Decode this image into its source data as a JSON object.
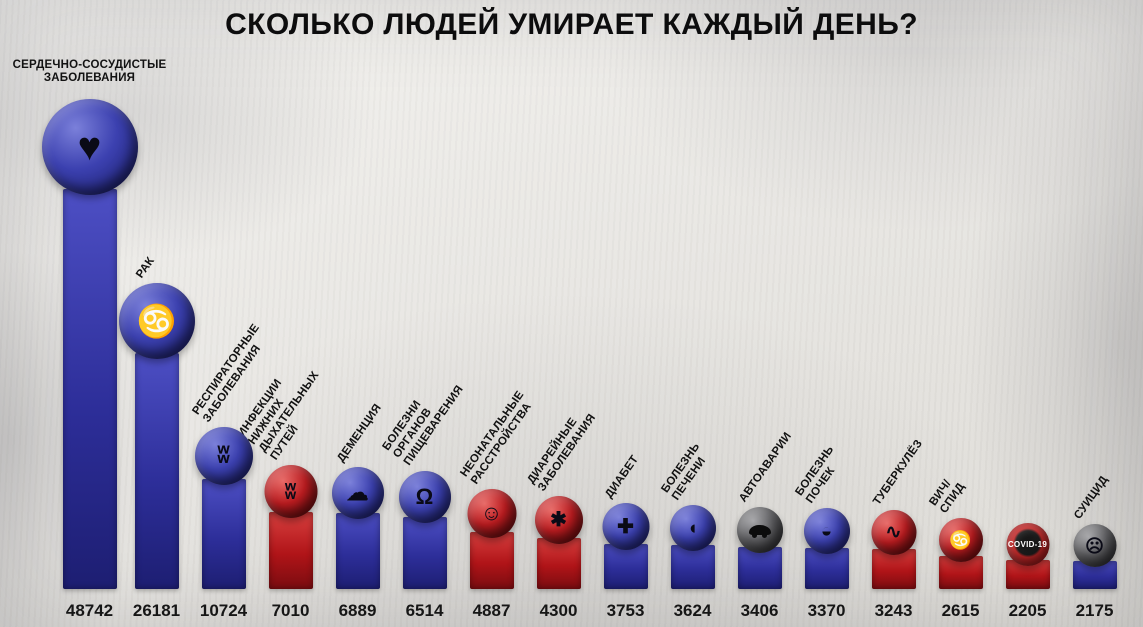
{
  "title": "СКОЛЬКО ЛЮДЕЙ УМИРАЕТ КАЖДЫЙ ДЕНЬ?",
  "colors": {
    "bar_blue": "#2d2e99",
    "bar_red": "#b01418",
    "circle_gray": "#57575a",
    "covid_ring_red": "#c42828",
    "text": "#121212",
    "background": "#eae9e6"
  },
  "chart_data": {
    "type": "bar",
    "title": "СКОЛЬКО ЛЮДЕЙ УМИРАЕТ КАЖДЫЙ ДЕНЬ?",
    "xlabel": "",
    "ylabel": "",
    "ylim": [
      0,
      50000
    ],
    "grid": false,
    "legend": false,
    "categories": [
      "Сердечно-сосудистые заболевания",
      "Рак",
      "Респираторные заболевания",
      "Инфекции нижних дыхательных путей",
      "Деменция",
      "Болезни органов пищеварения",
      "Неонатальные расстройства",
      "Диарейные заболевания",
      "Диабет",
      "Болезнь печени",
      "Автоаварии",
      "Болезнь почек",
      "Туберкулёз",
      "ВИЧ/СПИД",
      "COVID-19",
      "Суицид"
    ],
    "values": [
      48742,
      26181,
      10724,
      7010,
      6889,
      6514,
      4887,
      4300,
      3753,
      3624,
      3406,
      3370,
      3243,
      2615,
      2205,
      2175
    ],
    "bars": [
      {
        "label": "СЕРДЕЧНО-СОСУДИСТЫЕ\nЗАБОЛЕВАНИЯ",
        "value": 48742,
        "bar": "blue",
        "circle": "blue",
        "icon": "heart"
      },
      {
        "label": "РАК",
        "value": 26181,
        "bar": "blue",
        "circle": "blue",
        "icon": "awareness-ribbon"
      },
      {
        "label": "РЕСПИРАТОРНЫЕ\nЗАБОЛЕВАНИЯ",
        "value": 10724,
        "bar": "blue",
        "circle": "blue",
        "icon": "lungs"
      },
      {
        "label": "ИНФЕКЦИИ НИЖНИХ\nДЫХАТЕЛЬНЫХ ПУТЕЙ",
        "value": 7010,
        "bar": "red",
        "circle": "red",
        "icon": "lungs"
      },
      {
        "label": "ДЕМЕНЦИЯ",
        "value": 6889,
        "bar": "blue",
        "circle": "blue",
        "icon": "brain"
      },
      {
        "label": "БОЛЕЗНИ ОРГАНОВ\nПИЩЕВАРЕНИЯ",
        "value": 6514,
        "bar": "blue",
        "circle": "blue",
        "icon": "stomach"
      },
      {
        "label": "НЕОНАТАЛЬНЫЕ\nРАССТРОЙСТВА",
        "value": 4887,
        "bar": "red",
        "circle": "red",
        "icon": "baby"
      },
      {
        "label": "ДИАРЕЙНЫЕ\nЗАБОЛЕВАНИЯ",
        "value": 4300,
        "bar": "red",
        "circle": "red",
        "icon": "germ"
      },
      {
        "label": "ДИАБЕТ",
        "value": 3753,
        "bar": "blue",
        "circle": "blue",
        "icon": "diabetes"
      },
      {
        "label": "БОЛЕЗНЬ\nПЕЧЕНИ",
        "value": 3624,
        "bar": "blue",
        "circle": "blue",
        "icon": "liver"
      },
      {
        "label": "АВТОАВАРИИ",
        "value": 3406,
        "bar": "blue",
        "circle": "gray",
        "icon": "car"
      },
      {
        "label": "БОЛЕЗНЬ\nПОЧЕК",
        "value": 3370,
        "bar": "blue",
        "circle": "blue",
        "icon": "kidney"
      },
      {
        "label": "ТУБЕРКУЛЁЗ",
        "value": 3243,
        "bar": "red",
        "circle": "red",
        "icon": "bacteria"
      },
      {
        "label": "ВИЧ/СПИД",
        "value": 2615,
        "bar": "red",
        "circle": "red",
        "icon": "awareness-ribbon"
      },
      {
        "label": "",
        "value": 2205,
        "bar": "red",
        "circle": "covid",
        "icon": "covid",
        "circle_text": "COVID-19"
      },
      {
        "label": "СУИЦИД",
        "value": 2175,
        "bar": "blue",
        "circle": "gray",
        "icon": "person"
      }
    ]
  }
}
